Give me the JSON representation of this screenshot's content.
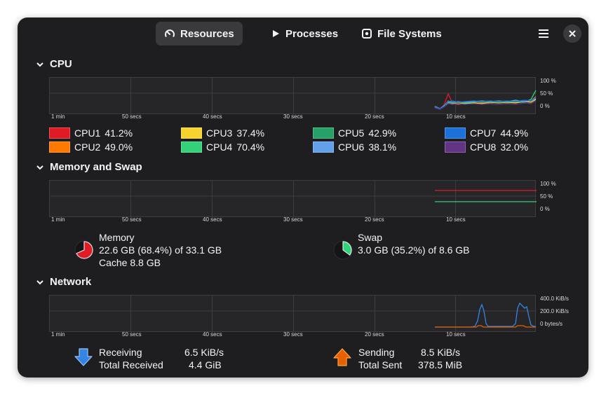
{
  "header": {
    "tabs": [
      {
        "label": "Resources",
        "icon": "gauge-icon",
        "active": true
      },
      {
        "label": "Processes",
        "icon": "play-icon",
        "active": false
      },
      {
        "label": "File Systems",
        "icon": "disk-icon",
        "active": false
      }
    ],
    "menu_icon": "hamburger-menu-icon",
    "close_icon": "close-icon"
  },
  "time_axis": [
    "1 min",
    "50 secs",
    "40 secs",
    "30 secs",
    "20 secs",
    "10 secs"
  ],
  "cpu": {
    "title": "CPU",
    "y_ticks": [
      "100 %",
      "50 %",
      "0 %"
    ],
    "cores": [
      {
        "label": "CPU1",
        "value": "41.2%",
        "color": "#e01b24"
      },
      {
        "label": "CPU2",
        "value": "49.0%",
        "color": "#ff7800"
      },
      {
        "label": "CPU3",
        "value": "37.4%",
        "color": "#f6d32d"
      },
      {
        "label": "CPU4",
        "value": "70.4%",
        "color": "#33d17a"
      },
      {
        "label": "CPU5",
        "value": "42.9%",
        "color": "#26a269"
      },
      {
        "label": "CPU6",
        "value": "38.1%",
        "color": "#62a0ea"
      },
      {
        "label": "CPU7",
        "value": "44.9%",
        "color": "#1c71d8"
      },
      {
        "label": "CPU8",
        "value": "32.0%",
        "color": "#613583"
      }
    ]
  },
  "memory": {
    "title": "Memory and Swap",
    "y_ticks": [
      "100 %",
      "50 %",
      "0 %"
    ],
    "memory_label": "Memory",
    "memory_usage": "22.6 GB (68.4%) of 33.1 GB",
    "memory_cache": "Cache 8.8 GB",
    "memory_fraction": 0.684,
    "memory_color": "#e01b24",
    "swap_label": "Swap",
    "swap_usage": "3.0 GB (35.2%) of 8.6 GB",
    "swap_fraction": 0.352,
    "swap_color": "#33d17a"
  },
  "network": {
    "title": "Network",
    "y_ticks": [
      "400.0 KiB/s",
      "200.0 KiB/s",
      "0 bytes/s"
    ],
    "receiving_label": "Receiving",
    "receiving_value": "6.5 KiB/s",
    "total_received_label": "Total Received",
    "total_received_value": "4.4 GiB",
    "sending_label": "Sending",
    "sending_value": "8.5 KiB/s",
    "total_sent_label": "Total Sent",
    "total_sent_value": "378.5 MiB",
    "receive_color": "#3584e4",
    "send_color": "#e66100"
  }
}
